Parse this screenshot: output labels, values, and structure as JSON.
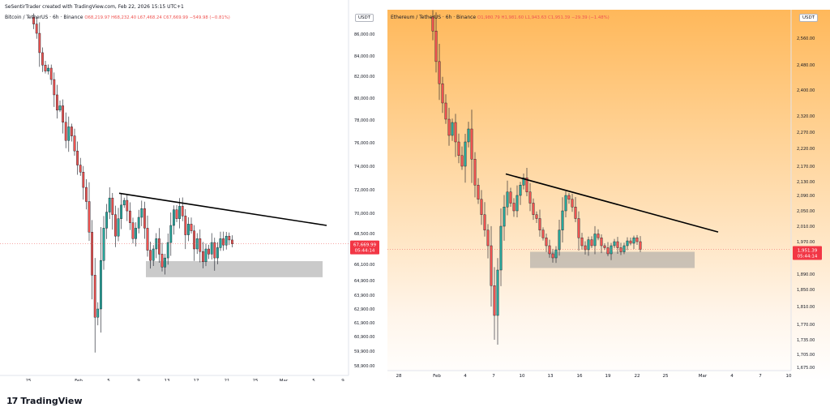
{
  "header": {
    "author_line": "SeSentirTrader created with TradingView.com, Feb 22, 2026 15:15 UTC+1",
    "brand": "TradingView"
  },
  "colors": {
    "up": "#26a69a",
    "down": "#ef5350",
    "wick": "#131722",
    "trendline": "#000000",
    "zone": "#9e9e9e",
    "price_badge": "#f23645"
  },
  "chart_data": [
    {
      "type": "candlestick",
      "symbol_line": "Bitcoin / TetherUS · 6h · Binance",
      "ohlc": {
        "o": "O68,219.97",
        "h": "H68,232.40",
        "l": "L67,468.24",
        "c": "C67,669.99",
        "chg": "−549.98 (−0.81%)"
      },
      "currency": "USDT",
      "y_ticks": [
        86000,
        84000,
        82000,
        80000,
        78000,
        76000,
        74000,
        72000,
        70000,
        68500,
        66100,
        64900,
        63900,
        62900,
        61900,
        60900,
        59900,
        58900
      ],
      "y_tick_labels": [
        "86,000.00",
        "84,000.00",
        "82,000.00",
        "80,000.00",
        "78,000.00",
        "76,000.00",
        "74,000.00",
        "72,000.00",
        "70,000.00",
        "68,500.00",
        "66,100.00",
        "64,900.00",
        "63,900.00",
        "62,900.00",
        "61,900.00",
        "60,900.00",
        "59,900.00",
        "58,900.00"
      ],
      "x_tick_labels": [
        "25",
        "Feb",
        "5",
        "9",
        "13",
        "17",
        "21",
        "25",
        "Mar",
        "5",
        "9"
      ],
      "last_price": "67,669.99",
      "countdown": "05:44:14",
      "trendline": {
        "from_date": "Feb 7",
        "from_price": 71700,
        "to_date": "Mar 7",
        "to_price": 69100
      },
      "support_zone": {
        "low": 65150,
        "high": 66350
      },
      "price_path": [
        88200,
        87300,
        86100,
        84300,
        83100,
        82500,
        82800,
        81700,
        80300,
        78900,
        79300,
        77800,
        76200,
        77400,
        76600,
        75300,
        74100,
        73500,
        72200,
        71000,
        68600,
        65300,
        62300,
        62900,
        66400,
        68900,
        70100,
        71300,
        69900,
        68300,
        69600,
        70700,
        71100,
        70200,
        69300,
        68100,
        68900,
        69700,
        70400,
        68900,
        67200,
        66400,
        67300,
        68100,
        66900,
        65900,
        66600,
        67800,
        69100,
        70300,
        69600,
        70600,
        69800,
        68400,
        69200,
        68700,
        67300,
        68100,
        67100,
        66300,
        67300,
        66900,
        67800,
        66600,
        67400,
        68100,
        67600,
        68300,
        68000,
        67700
      ]
    },
    {
      "type": "candlestick",
      "symbol_line": "Ethereum / TetherUS · 6h · Binance",
      "ohlc": {
        "o": "O1,980.79",
        "h": "H1,981.60",
        "l": "L1,943.63",
        "c": "C1,951.39",
        "chg": "−29.39 (−1.48%)"
      },
      "currency": "USDT",
      "y_ticks": [
        2560,
        2480,
        2400,
        2320,
        2270,
        2220,
        2170,
        2130,
        2090,
        2050,
        2010,
        1970,
        1890,
        1850,
        1810,
        1770,
        1735,
        1705,
        1675
      ],
      "y_tick_labels": [
        "2,560.00",
        "2,480.00",
        "2,400.00",
        "2,320.00",
        "2,270.00",
        "2,220.00",
        "2,170.00",
        "2,130.00",
        "2,090.00",
        "2,050.00",
        "2,010.00",
        "1,970.00",
        "1,890.00",
        "1,850.00",
        "1,810.00",
        "1,770.00",
        "1,735.00",
        "1,705.00",
        "1,675.00"
      ],
      "x_tick_labels": [
        "28",
        "Feb",
        "4",
        "7",
        "10",
        "13",
        "16",
        "19",
        "22",
        "25",
        "Mar",
        "4",
        "7",
        "10"
      ],
      "last_price": "1,951.39",
      "countdown": "05:44:14",
      "trendline": {
        "from_date": "Feb 7",
        "from_price": 2150,
        "to_date": "Mar 4",
        "to_price": 1995
      },
      "support_zone": {
        "low": 1905,
        "high": 1945
      },
      "price_path": [
        2620,
        2580,
        2490,
        2420,
        2360,
        2310,
        2260,
        2300,
        2240,
        2200,
        2170,
        2240,
        2280,
        2190,
        2120,
        2080,
        2040,
        2000,
        1960,
        1860,
        1790,
        1900,
        2010,
        2060,
        2100,
        2070,
        2050,
        2090,
        2120,
        2140,
        2100,
        2070,
        2040,
        2030,
        2000,
        1980,
        1960,
        1940,
        1930,
        1950,
        2000,
        2050,
        2090,
        2080,
        2060,
        2030,
        1980,
        1960,
        1950,
        1975,
        1960,
        1990,
        1980,
        1960,
        1955,
        1940,
        1960,
        1970,
        1955,
        1945,
        1960,
        1972,
        1966,
        1980,
        1970,
        1951
      ]
    }
  ]
}
